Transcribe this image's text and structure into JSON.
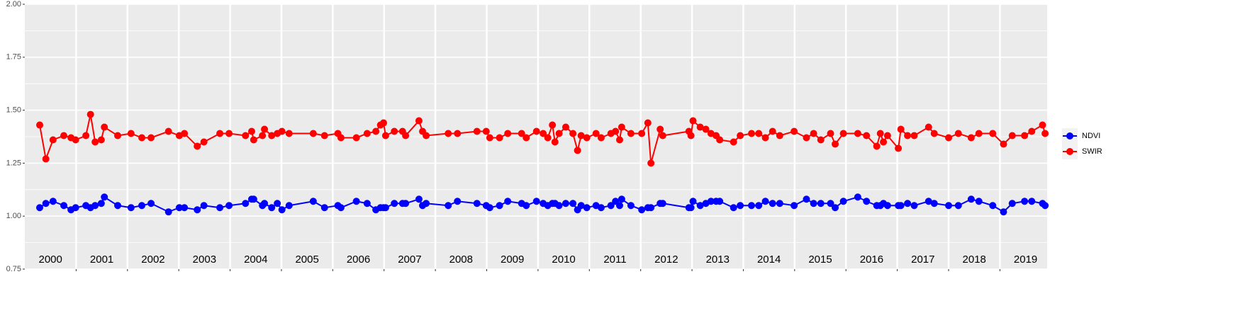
{
  "chart_data": {
    "type": "line",
    "x": [
      2000.29,
      2000.41,
      2000.55,
      2000.76,
      2000.9,
      2000.99,
      2001.19,
      2001.28,
      2001.37,
      2001.49,
      2001.55,
      2001.81,
      2002.07,
      2002.28,
      2002.46,
      2002.8,
      2003.01,
      2003.11,
      2003.36,
      2003.49,
      2003.8,
      2003.98,
      2004.3,
      2004.42,
      2004.46,
      2004.63,
      2004.67,
      2004.81,
      2004.92,
      2005.01,
      2005.15,
      2005.62,
      2005.84,
      2006.1,
      2006.16,
      2006.46,
      2006.67,
      2006.84,
      2006.93,
      2006.99,
      2007.03,
      2007.2,
      2007.36,
      2007.42,
      2007.68,
      2007.75,
      2007.82,
      2008.25,
      2008.43,
      2008.81,
      2008.99,
      2009.06,
      2009.25,
      2009.41,
      2009.68,
      2009.77,
      2009.97,
      2010.1,
      2010.19,
      2010.28,
      2010.33,
      2010.41,
      2010.54,
      2010.68,
      2010.77,
      2010.84,
      2010.95,
      2011.13,
      2011.23,
      2011.42,
      2011.51,
      2011.59,
      2011.63,
      2011.81,
      2012.02,
      2012.14,
      2012.2,
      2012.38,
      2012.43,
      2012.94,
      2012.98,
      2013.02,
      2013.16,
      2013.27,
      2013.37,
      2013.47,
      2013.54,
      2013.81,
      2013.94,
      2014.16,
      2014.3,
      2014.43,
      2014.57,
      2014.71,
      2014.99,
      2015.23,
      2015.37,
      2015.51,
      2015.7,
      2015.79,
      2015.95,
      2016.23,
      2016.4,
      2016.6,
      2016.67,
      2016.73,
      2016.81,
      2017.02,
      2017.07,
      2017.2,
      2017.33,
      2017.61,
      2017.72,
      2018.0,
      2018.19,
      2018.44,
      2018.59,
      2018.86,
      2019.07,
      2019.24,
      2019.48,
      2019.62,
      2019.83,
      2019.88
    ],
    "series": [
      {
        "name": "NDVI",
        "color": "#0000ff",
        "values": [
          1.04,
          1.06,
          1.07,
          1.05,
          1.03,
          1.04,
          1.05,
          1.04,
          1.05,
          1.06,
          1.09,
          1.05,
          1.04,
          1.05,
          1.06,
          1.02,
          1.04,
          1.04,
          1.03,
          1.05,
          1.04,
          1.05,
          1.06,
          1.08,
          1.08,
          1.05,
          1.06,
          1.04,
          1.06,
          1.03,
          1.05,
          1.07,
          1.04,
          1.05,
          1.04,
          1.07,
          1.06,
          1.03,
          1.04,
          1.04,
          1.04,
          1.06,
          1.06,
          1.06,
          1.08,
          1.05,
          1.06,
          1.05,
          1.07,
          1.06,
          1.05,
          1.04,
          1.05,
          1.07,
          1.06,
          1.05,
          1.07,
          1.06,
          1.05,
          1.06,
          1.06,
          1.05,
          1.06,
          1.06,
          1.03,
          1.05,
          1.04,
          1.05,
          1.04,
          1.05,
          1.07,
          1.05,
          1.08,
          1.05,
          1.03,
          1.04,
          1.04,
          1.06,
          1.06,
          1.04,
          1.04,
          1.07,
          1.05,
          1.06,
          1.07,
          1.07,
          1.07,
          1.04,
          1.05,
          1.05,
          1.05,
          1.07,
          1.06,
          1.06,
          1.05,
          1.08,
          1.06,
          1.06,
          1.06,
          1.04,
          1.07,
          1.09,
          1.07,
          1.05,
          1.05,
          1.06,
          1.05,
          1.05,
          1.05,
          1.06,
          1.05,
          1.07,
          1.06,
          1.05,
          1.05,
          1.08,
          1.07,
          1.05,
          1.02,
          1.06,
          1.07,
          1.07,
          1.06,
          1.05
        ]
      },
      {
        "name": "SWIR",
        "color": "#ff0000",
        "values": [
          1.43,
          1.27,
          1.36,
          1.38,
          1.37,
          1.36,
          1.38,
          1.48,
          1.35,
          1.36,
          1.42,
          1.38,
          1.39,
          1.37,
          1.37,
          1.4,
          1.38,
          1.39,
          1.33,
          1.35,
          1.39,
          1.39,
          1.38,
          1.4,
          1.36,
          1.38,
          1.41,
          1.38,
          1.39,
          1.4,
          1.39,
          1.39,
          1.38,
          1.39,
          1.37,
          1.37,
          1.39,
          1.4,
          1.43,
          1.44,
          1.38,
          1.4,
          1.4,
          1.38,
          1.45,
          1.4,
          1.38,
          1.39,
          1.39,
          1.4,
          1.4,
          1.37,
          1.37,
          1.39,
          1.39,
          1.37,
          1.4,
          1.39,
          1.37,
          1.43,
          1.35,
          1.39,
          1.42,
          1.39,
          1.31,
          1.38,
          1.37,
          1.39,
          1.37,
          1.39,
          1.4,
          1.36,
          1.42,
          1.39,
          1.39,
          1.44,
          1.25,
          1.41,
          1.38,
          1.4,
          1.38,
          1.45,
          1.42,
          1.41,
          1.39,
          1.38,
          1.36,
          1.35,
          1.38,
          1.39,
          1.39,
          1.37,
          1.4,
          1.38,
          1.4,
          1.37,
          1.39,
          1.36,
          1.39,
          1.34,
          1.39,
          1.39,
          1.38,
          1.33,
          1.39,
          1.35,
          1.38,
          1.32,
          1.41,
          1.38,
          1.38,
          1.42,
          1.39,
          1.37,
          1.39,
          1.37,
          1.39,
          1.39,
          1.34,
          1.38,
          1.38,
          1.4,
          1.43,
          1.39
        ]
      }
    ],
    "xlim": [
      2000,
      2019.92
    ],
    "xticks": [
      2001,
      2002,
      2003,
      2004,
      2005,
      2006,
      2007,
      2008,
      2009,
      2010,
      2011,
      2012,
      2013,
      2014,
      2015,
      2016,
      2017,
      2018,
      2019
    ],
    "ylim": [
      0.75,
      2.0
    ],
    "yticks": [
      {
        "value": 0.75,
        "label": "0.75"
      },
      {
        "value": 1.0,
        "label": "1.00"
      },
      1.25,
      {
        "value": 1.5,
        "label": "1.50"
      },
      1.75,
      {
        "value": 2.0,
        "label": "2.00"
      }
    ],
    "year_labels": [
      2000,
      2001,
      2002,
      2003,
      2004,
      2005,
      2006,
      2007,
      2008,
      2009,
      2010,
      2011,
      2012,
      2013,
      2014,
      2015,
      2016,
      2017,
      2018,
      2019
    ],
    "grid": true,
    "legend": "right"
  }
}
